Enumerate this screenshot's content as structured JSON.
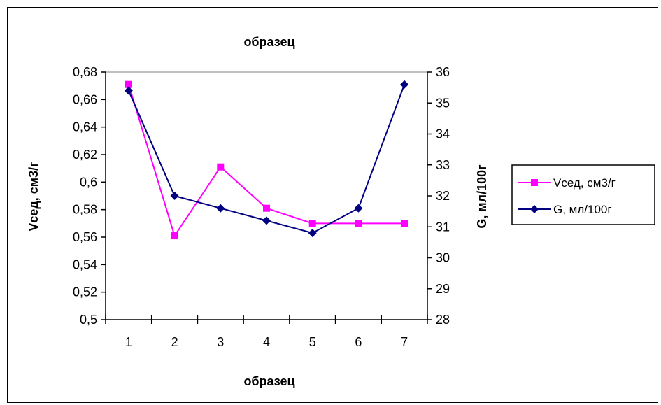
{
  "chart_data": {
    "type": "line",
    "title": "образец",
    "xlabel": "образец",
    "ylabel_left": "Vсед, см3/г",
    "ylabel_right": "G, мл/100г",
    "categories": [
      "1",
      "2",
      "3",
      "4",
      "5",
      "6",
      "7"
    ],
    "left_axis": {
      "ylim": [
        0.5,
        0.68
      ],
      "ticks": [
        "0,5",
        "0,52",
        "0,54",
        "0,56",
        "0,58",
        "0,6",
        "0,62",
        "0,64",
        "0,66",
        "0,68"
      ]
    },
    "right_axis": {
      "ylim": [
        28,
        36
      ],
      "ticks": [
        "28",
        "29",
        "30",
        "31",
        "32",
        "33",
        "34",
        "35",
        "36"
      ]
    },
    "series": [
      {
        "name": "Vсед, см3/г",
        "axis": "left",
        "color": "#ff00ff",
        "marker": "square",
        "values": [
          0.671,
          0.561,
          0.611,
          0.581,
          0.57,
          0.57,
          0.57
        ]
      },
      {
        "name": "G, мл/100г",
        "axis": "right",
        "color": "#000080",
        "marker": "diamond",
        "values": [
          35.4,
          32.0,
          31.6,
          31.2,
          30.8,
          31.6,
          35.6
        ]
      }
    ],
    "grid": false,
    "legend_position": "right"
  }
}
